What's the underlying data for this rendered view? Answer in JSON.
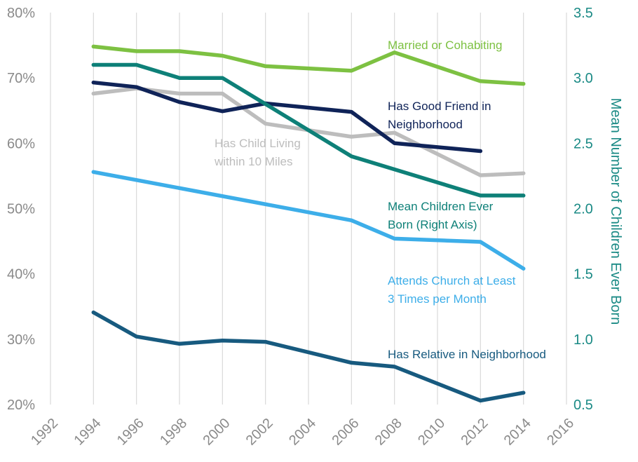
{
  "chart_data": {
    "type": "line",
    "x_ticks": [
      "1992",
      "1994",
      "1996",
      "1998",
      "2000",
      "2002",
      "2004",
      "2006",
      "2008",
      "2010",
      "2012",
      "2014",
      "2016"
    ],
    "xlim": [
      1992,
      2016
    ],
    "y_left": {
      "ticks": [
        "20%",
        "30%",
        "40%",
        "50%",
        "60%",
        "70%",
        "80%"
      ],
      "range": [
        20,
        80
      ],
      "unit": "%"
    },
    "y_right": {
      "title": "Mean Number of Children Ever Born",
      "ticks": [
        "0.5",
        "1.0",
        "1.5",
        "2.0",
        "2.5",
        "3.0",
        "3.5"
      ],
      "range": [
        0.5,
        3.5
      ]
    },
    "grid": "vertical",
    "series": [
      {
        "name": "Married or Cohabiting",
        "axis": "left",
        "color": "#7dc142",
        "label_lines": [
          "Married or Cohabiting"
        ],
        "points": [
          [
            1994,
            74.8
          ],
          [
            1996,
            74.1
          ],
          [
            1998,
            74.1
          ],
          [
            2000,
            73.4
          ],
          [
            2002,
            71.8
          ],
          [
            2006,
            71.1
          ],
          [
            2008,
            73.9
          ],
          [
            2012,
            69.5
          ],
          [
            2014,
            69.1
          ]
        ]
      },
      {
        "name": "Has Child Living within 10 Miles",
        "axis": "left",
        "color": "#bdbdbd",
        "label_lines": [
          "Has Child Living",
          "within 10 Miles"
        ],
        "points": [
          [
            1994,
            67.6
          ],
          [
            1996,
            68.4
          ],
          [
            1998,
            67.6
          ],
          [
            2000,
            67.6
          ],
          [
            2002,
            63.0
          ],
          [
            2006,
            61.0
          ],
          [
            2008,
            61.6
          ],
          [
            2012,
            55.1
          ],
          [
            2014,
            55.4
          ]
        ]
      },
      {
        "name": "Has Good Friend in Neighborhood",
        "axis": "left",
        "color": "#0f2358",
        "label_lines": [
          "Has Good Friend in",
          "Neighborhood"
        ],
        "points": [
          [
            1994,
            69.3
          ],
          [
            1996,
            68.6
          ],
          [
            1998,
            66.3
          ],
          [
            2000,
            64.9
          ],
          [
            2002,
            66.1
          ],
          [
            2006,
            64.8
          ],
          [
            2008,
            60.0
          ],
          [
            2012,
            58.8
          ]
        ]
      },
      {
        "name": "Mean Children Ever Born (Right Axis)",
        "axis": "right",
        "color": "#0e8078",
        "label_lines": [
          "Mean Children Ever",
          "Born (Right Axis)"
        ],
        "points": [
          [
            1994,
            3.1
          ],
          [
            1996,
            3.1
          ],
          [
            1998,
            3.0
          ],
          [
            2000,
            3.0
          ],
          [
            2002,
            2.8
          ],
          [
            2006,
            2.4
          ],
          [
            2008,
            2.3
          ],
          [
            2012,
            2.1
          ],
          [
            2014,
            2.1
          ]
        ]
      },
      {
        "name": "Attends Church at Least 3 Times per Month",
        "axis": "left",
        "color": "#3daee9",
        "label_lines": [
          "Attends Church at Least",
          "3 Times per Month"
        ],
        "points": [
          [
            1994,
            55.6
          ],
          [
            2006,
            48.2
          ],
          [
            2008,
            45.4
          ],
          [
            2012,
            44.9
          ],
          [
            2014,
            40.8
          ]
        ]
      },
      {
        "name": "Has Relative in Neighborhood",
        "axis": "left",
        "color": "#175a7f",
        "label_lines": [
          "Has Relative in Neighborhood"
        ],
        "points": [
          [
            1994,
            34.1
          ],
          [
            1996,
            30.4
          ],
          [
            1998,
            29.3
          ],
          [
            2000,
            29.8
          ],
          [
            2002,
            29.6
          ],
          [
            2006,
            26.4
          ],
          [
            2008,
            25.8
          ],
          [
            2012,
            20.6
          ],
          [
            2014,
            21.8
          ]
        ]
      }
    ]
  }
}
